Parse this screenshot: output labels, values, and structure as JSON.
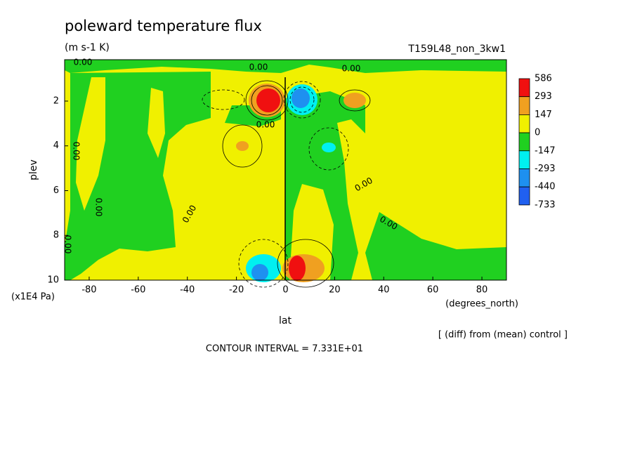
{
  "chart_data": {
    "type": "contour",
    "title": "poleward temperature flux",
    "units": "(m s-1 K)",
    "run_label": "T159L48_non_3kw1",
    "x_label": "lat",
    "x_units": "(degrees_north)",
    "y_label": "plev",
    "y_units": "(x1E4 Pa)",
    "note": "[ (diff) from (mean) control ]",
    "contour_interval": "CONTOUR INTERVAL = 7.331E+01",
    "contour_labels": [
      "0.00",
      "0.00",
      "0.00",
      "0.00",
      "0.00",
      "0.00",
      "0.00",
      "0.00",
      "0.00",
      "0.00"
    ],
    "xlim": [
      -90,
      90
    ],
    "xticks": [
      -80,
      -60,
      -40,
      -20,
      0,
      20,
      40,
      60,
      80
    ],
    "ylim": [
      10,
      0.15
    ],
    "yticks": [
      2,
      4,
      6,
      8,
      10
    ],
    "colorbar": {
      "levels": [
        586,
        293,
        147,
        0,
        -147,
        -293,
        -440,
        -733
      ],
      "colors": [
        "#f01010",
        "#f0a020",
        "#f0f000",
        "#20d020",
        "#00f0f0",
        "#1e90f0",
        "#2060f0"
      ]
    }
  }
}
